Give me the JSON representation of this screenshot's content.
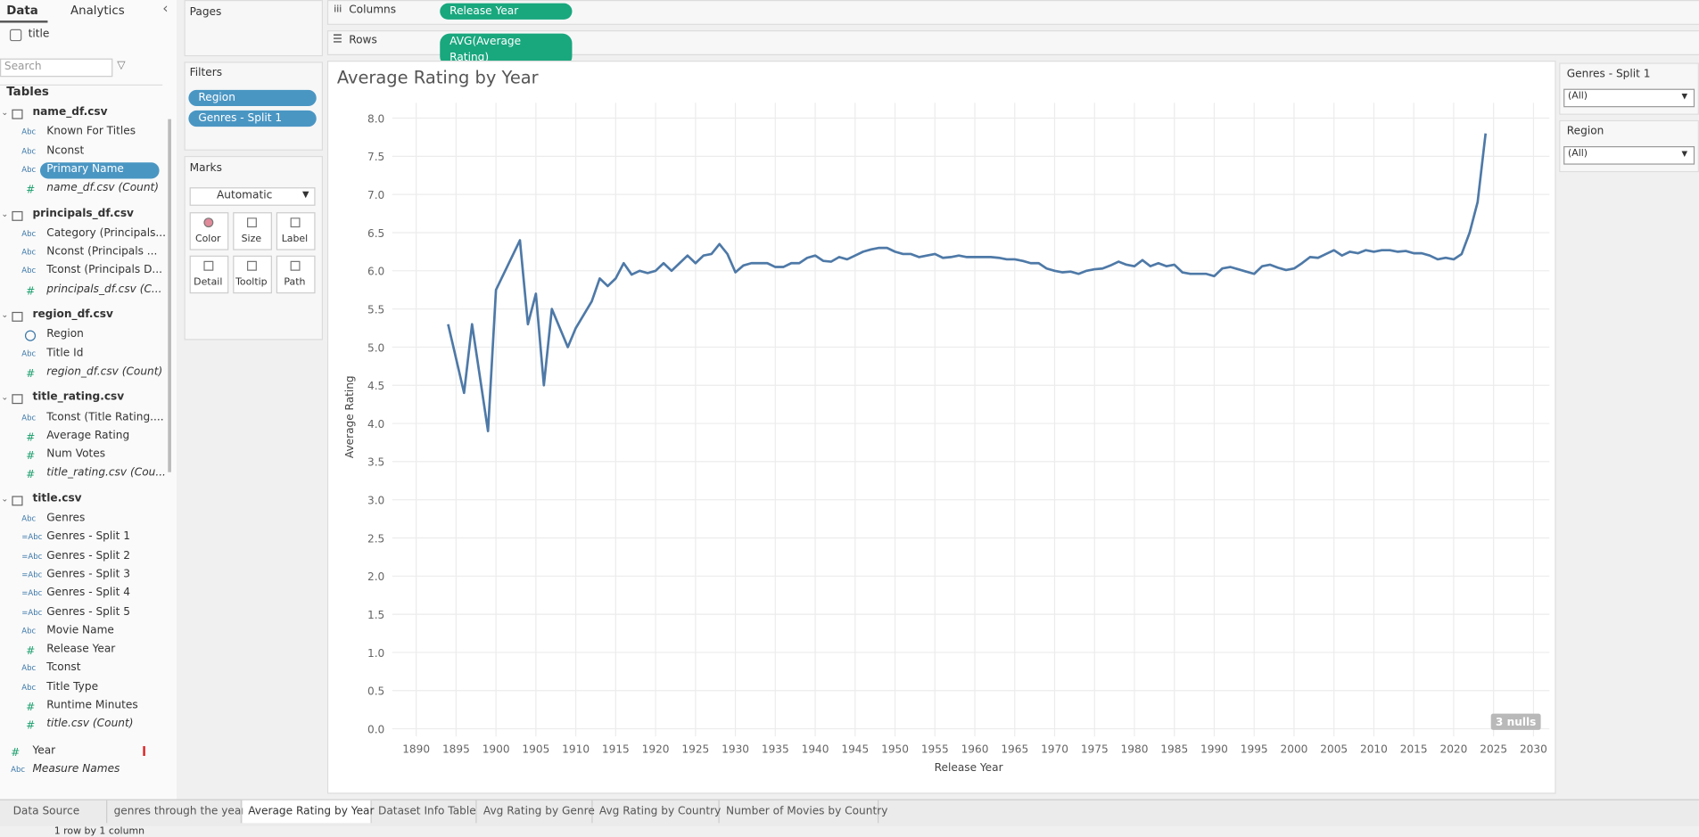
{
  "sidebar": {
    "tabs": [
      "Data",
      "Analytics"
    ],
    "source": "title",
    "search_placeholder": "Search",
    "tables_heading": "Tables",
    "tables": [
      {
        "name": "name_df.csv",
        "fields": [
          {
            "type": "Abc",
            "name": "Known For Titles"
          },
          {
            "type": "Abc",
            "name": "Nconst"
          },
          {
            "type": "Abc",
            "name": "Primary Name",
            "highlighted": true
          },
          {
            "type": "#",
            "name": "name_df.csv (Count)",
            "italic": true
          }
        ]
      },
      {
        "name": "principals_df.csv",
        "fields": [
          {
            "type": "Abc",
            "name": "Category (Principals..."
          },
          {
            "type": "Abc",
            "name": "Nconst (Principals ..."
          },
          {
            "type": "Abc",
            "name": "Tconst (Principals D..."
          },
          {
            "type": "#",
            "name": "principals_df.csv (C...",
            "italic": true
          }
        ]
      },
      {
        "name": "region_df.csv",
        "fields": [
          {
            "name": "Region"
          },
          {
            "type": "Abc",
            "name": "Title Id"
          },
          {
            "type": "#",
            "name": "region_df.csv (Count)",
            "italic": true
          }
        ]
      },
      {
        "name": "title_rating.csv",
        "fields": [
          {
            "type": "Abc",
            "name": "Tconst (Title Rating...."
          },
          {
            "type": "#",
            "name": "Average Rating"
          },
          {
            "type": "#",
            "name": "Num Votes"
          },
          {
            "type": "#",
            "name": "title_rating.csv (Cou...",
            "italic": true
          }
        ]
      },
      {
        "name": "title.csv",
        "fields": [
          {
            "type": "Abc",
            "name": "Genres"
          },
          {
            "type": "=Abc",
            "name": "Genres - Split 1"
          },
          {
            "type": "=Abc",
            "name": "Genres - Split 2"
          },
          {
            "type": "=Abc",
            "name": "Genres - Split 3"
          },
          {
            "type": "=Abc",
            "name": "Genres - Split 4"
          },
          {
            "type": "=Abc",
            "name": "Genres - Split 5"
          },
          {
            "type": "Abc",
            "name": "Movie Name"
          },
          {
            "type": "#",
            "name": "Release Year"
          },
          {
            "type": "Abc",
            "name": "Tconst"
          },
          {
            "type": "Abc",
            "name": "Title Type"
          },
          {
            "type": "#",
            "name": "Runtime Minutes"
          },
          {
            "type": "#",
            "name": "title.csv (Count)",
            "italic": true
          }
        ]
      }
    ],
    "extra_fields": [
      {
        "type": "#",
        "name": "Year"
      },
      {
        "type": "Abc",
        "name": "Measure Names",
        "italic": true
      }
    ]
  },
  "pages_label": "Pages",
  "filters": {
    "label": "Filters",
    "items": [
      "Region",
      "Genres - Split 1"
    ]
  },
  "marks": {
    "label": "Marks",
    "type": "Automatic",
    "buttons": [
      "Color",
      "Size",
      "Label",
      "Detail",
      "Tooltip",
      "Path"
    ]
  },
  "shelves": {
    "columns": {
      "label": "Columns",
      "pill": "Release Year"
    },
    "rows": {
      "label": "Rows",
      "pill": "AVG(Average Rating)"
    }
  },
  "chart_data": {
    "type": "line",
    "title": "Average Rating by Year",
    "x_label": "Release Year",
    "y_label": "Average Rating",
    "color": "#4e79a7",
    "grid": true,
    "nulls_badge": "3 nulls",
    "x": [
      1894,
      1896,
      1897,
      1899,
      1900,
      1903,
      1904,
      1905,
      1906,
      1907,
      1909,
      1910,
      1912,
      1913,
      1914,
      1915,
      1916,
      1917,
      1918,
      1919,
      1920,
      1921,
      1922,
      1923,
      1924,
      1925,
      1926,
      1927,
      1928,
      1929,
      1930,
      1931,
      1932,
      1933,
      1934,
      1935,
      1936,
      1937,
      1938,
      1939,
      1940,
      1941,
      1942,
      1943,
      1944,
      1945,
      1946,
      1947,
      1948,
      1949,
      1950,
      1951,
      1952,
      1953,
      1954,
      1955,
      1956,
      1957,
      1958,
      1959,
      1960,
      1961,
      1962,
      1963,
      1964,
      1965,
      1966,
      1967,
      1968,
      1969,
      1970,
      1971,
      1972,
      1973,
      1974,
      1975,
      1976,
      1977,
      1978,
      1979,
      1980,
      1981,
      1982,
      1983,
      1984,
      1985,
      1986,
      1987,
      1988,
      1989,
      1990,
      1991,
      1992,
      1993,
      1994,
      1995,
      1996,
      1997,
      1998,
      1999,
      2000,
      2001,
      2002,
      2003,
      2004,
      2005,
      2006,
      2007,
      2008,
      2009,
      2010,
      2011,
      2012,
      2013,
      2014,
      2015,
      2016,
      2017,
      2018,
      2019,
      2020,
      2021,
      2022,
      2023,
      2024
    ],
    "values": [
      5.3,
      4.4,
      5.3,
      3.9,
      5.75,
      6.4,
      5.3,
      5.7,
      4.5,
      5.5,
      5.0,
      5.25,
      5.6,
      5.9,
      5.8,
      5.9,
      6.1,
      5.95,
      6.0,
      5.97,
      6.0,
      6.1,
      6.0,
      6.1,
      6.2,
      6.1,
      6.2,
      6.22,
      6.35,
      6.22,
      5.98,
      6.07,
      6.1,
      6.1,
      6.1,
      6.05,
      6.05,
      6.1,
      6.1,
      6.17,
      6.2,
      6.13,
      6.12,
      6.18,
      6.15,
      6.2,
      6.25,
      6.28,
      6.3,
      6.3,
      6.25,
      6.22,
      6.22,
      6.18,
      6.2,
      6.22,
      6.17,
      6.18,
      6.2,
      6.18,
      6.18,
      6.18,
      6.18,
      6.17,
      6.15,
      6.15,
      6.13,
      6.1,
      6.1,
      6.03,
      6.0,
      5.98,
      5.99,
      5.96,
      6.0,
      6.02,
      6.03,
      6.07,
      6.12,
      6.08,
      6.06,
      6.14,
      6.06,
      6.1,
      6.06,
      6.08,
      5.98,
      5.96,
      5.96,
      5.96,
      5.93,
      6.03,
      6.05,
      6.02,
      5.99,
      5.96,
      6.06,
      6.08,
      6.04,
      6.01,
      6.03,
      6.1,
      6.18,
      6.17,
      6.22,
      6.27,
      6.2,
      6.25,
      6.23,
      6.27,
      6.25,
      6.27,
      6.27,
      6.25,
      6.26,
      6.23,
      6.23,
      6.2,
      6.15,
      6.17,
      6.15,
      6.22,
      6.5,
      6.9,
      7.8
    ],
    "xlim": [
      1887,
      2032
    ],
    "ylim": [
      -0.1,
      8.2
    ],
    "xticks": [
      1890,
      1895,
      1900,
      1905,
      1910,
      1915,
      1920,
      1925,
      1930,
      1935,
      1940,
      1945,
      1950,
      1955,
      1960,
      1965,
      1970,
      1975,
      1980,
      1985,
      1990,
      1995,
      2000,
      2005,
      2010,
      2015,
      2020,
      2025,
      2030
    ],
    "yticks": [
      {
        "value": 0,
        "label": "0.0"
      },
      0.5,
      {
        "value": 1,
        "label": "1.0"
      },
      1.5,
      {
        "value": 2,
        "label": "2.0"
      },
      2.5,
      {
        "value": 3,
        "label": "3.0"
      },
      3.5,
      {
        "value": 4,
        "label": "4.0"
      },
      4.5,
      {
        "value": 5,
        "label": "5.0"
      },
      5.5,
      {
        "value": 6,
        "label": "6.0"
      },
      6.5,
      {
        "value": 7,
        "label": "7.0"
      },
      7.5,
      {
        "value": 8,
        "label": "8.0"
      }
    ]
  },
  "quick_filters": [
    {
      "title": "Genres - Split 1",
      "value": "(All)"
    },
    {
      "title": "Region",
      "value": "(All)"
    }
  ],
  "sheet_tabs": {
    "items": [
      "Data Source",
      "genres through the year",
      "Average Rating by Year",
      "Dataset Info Table",
      "Avg Rating by Genre",
      "Avg Rating by Country",
      "Number of Movies by Country"
    ],
    "active": 2
  },
  "status_bar": {
    "rows_info": "1 row by 1 column"
  }
}
